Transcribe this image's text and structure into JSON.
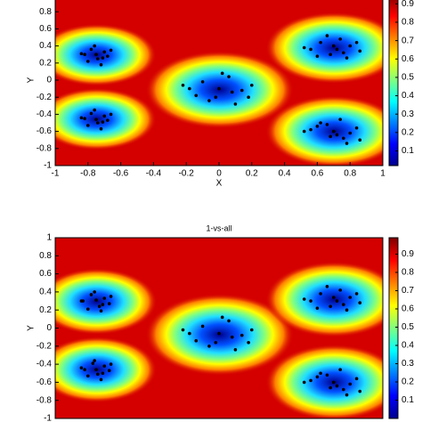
{
  "chart_data": [
    {
      "type": "scatter",
      "x_label": "X",
      "y_label": "Y",
      "xlim": [
        -1,
        1
      ],
      "ylim": [
        -1,
        1
      ],
      "xticks": [
        -1,
        -0.8,
        -0.6,
        -0.4,
        -0.2,
        0,
        0.2,
        0.4,
        0.6,
        0.8,
        1
      ],
      "yticks": [
        -1,
        -0.8,
        -0.6,
        -0.4,
        -0.2,
        0,
        0.2,
        0.4,
        0.6,
        0.8
      ],
      "colorbar": {
        "clim": [
          0.02,
          0.95
        ],
        "ticks": [
          0.1,
          0.2,
          0.3,
          0.4,
          0.5,
          0.6,
          0.7,
          0.8,
          0.9
        ]
      },
      "series": [
        {
          "color": "#000000",
          "x": [
            -0.82,
            -0.78,
            -0.74,
            -0.7,
            -0.68,
            -0.76,
            -0.8,
            -0.72,
            -0.66,
            -0.84,
            -0.75,
            -0.71
          ],
          "y": [
            0.3,
            0.36,
            0.25,
            0.33,
            0.28,
            0.4,
            0.22,
            0.18,
            0.35,
            0.31,
            0.3,
            0.26
          ]
        },
        {
          "color": "#000000",
          "x": [
            -0.82,
            -0.78,
            -0.74,
            -0.7,
            -0.68,
            -0.76,
            -0.8,
            -0.72,
            -0.66,
            -0.84,
            -0.75,
            -0.71
          ],
          "y": [
            -0.45,
            -0.39,
            -0.5,
            -0.42,
            -0.47,
            -0.35,
            -0.53,
            -0.57,
            -0.4,
            -0.44,
            -0.46,
            -0.49
          ]
        },
        {
          "color": "#000000",
          "x": [
            -0.18,
            -0.1,
            -0.02,
            0.06,
            0.14,
            0.2,
            -0.06,
            0.02,
            0.1,
            -0.14,
            0.0,
            0.08,
            -0.22,
            0.18
          ],
          "y": [
            -0.1,
            -0.02,
            -0.2,
            0.04,
            -0.12,
            -0.06,
            -0.24,
            0.08,
            -0.28,
            -0.18,
            -0.1,
            -0.14,
            -0.06,
            -0.2
          ]
        },
        {
          "color": "#000000",
          "x": [
            0.56,
            0.62,
            0.68,
            0.74,
            0.8,
            0.86,
            0.6,
            0.7,
            0.78,
            0.66,
            0.72,
            0.84,
            0.52,
            0.76
          ],
          "y": [
            0.36,
            0.44,
            0.3,
            0.48,
            0.4,
            0.34,
            0.28,
            0.4,
            0.26,
            0.52,
            0.36,
            0.44,
            0.38,
            0.32
          ]
        },
        {
          "color": "#000000",
          "x": [
            0.56,
            0.62,
            0.68,
            0.74,
            0.8,
            0.86,
            0.6,
            0.7,
            0.78,
            0.66,
            0.72,
            0.84,
            0.52,
            0.76
          ],
          "y": [
            -0.58,
            -0.5,
            -0.66,
            -0.46,
            -0.62,
            -0.7,
            -0.54,
            -0.6,
            -0.74,
            -0.52,
            -0.64,
            -0.56,
            -0.6,
            -0.68
          ]
        }
      ]
    },
    {
      "type": "scatter",
      "title": "1-vs-all",
      "y_label": "Y",
      "xlim": [
        -1,
        1
      ],
      "ylim": [
        -1,
        1
      ],
      "yticks": [
        -1,
        -0.8,
        -0.6,
        -0.4,
        -0.2,
        0,
        0.2,
        0.4,
        0.6,
        0.8,
        1
      ],
      "colorbar": {
        "clim": [
          0,
          0.99
        ],
        "ticks": [
          0.1,
          0.2,
          0.3,
          0.4,
          0.5,
          0.6,
          0.7,
          0.8,
          0.9
        ]
      },
      "series": [
        {
          "color": "#000000",
          "x": [
            -0.83,
            -0.78,
            -0.73,
            -0.7,
            -0.67,
            -0.76,
            -0.8,
            -0.72,
            -0.66,
            -0.84,
            -0.75,
            -0.71
          ],
          "y": [
            0.3,
            0.37,
            0.24,
            0.33,
            0.27,
            0.4,
            0.21,
            0.19,
            0.35,
            0.3,
            0.31,
            0.26
          ]
        },
        {
          "color": "#000000",
          "x": [
            -0.82,
            -0.77,
            -0.74,
            -0.7,
            -0.67,
            -0.76,
            -0.8,
            -0.72,
            -0.66,
            -0.84,
            -0.75,
            -0.71
          ],
          "y": [
            -0.46,
            -0.39,
            -0.51,
            -0.42,
            -0.47,
            -0.36,
            -0.53,
            -0.57,
            -0.4,
            -0.44,
            -0.46,
            -0.5
          ]
        },
        {
          "color": "#000000",
          "x": [
            -0.18,
            -0.1,
            -0.02,
            0.06,
            0.14,
            0.2,
            -0.06,
            0.02,
            0.1,
            -0.14,
            0.0,
            0.08,
            -0.22,
            0.18
          ],
          "y": [
            -0.06,
            0.02,
            -0.16,
            0.08,
            -0.08,
            -0.02,
            -0.2,
            0.12,
            -0.24,
            -0.14,
            -0.06,
            -0.1,
            -0.02,
            -0.16
          ]
        },
        {
          "color": "#000000",
          "x": [
            0.56,
            0.62,
            0.68,
            0.74,
            0.8,
            0.86,
            0.6,
            0.7,
            0.78,
            0.66,
            0.72,
            0.84,
            0.52,
            0.76
          ],
          "y": [
            0.3,
            0.38,
            0.24,
            0.42,
            0.34,
            0.28,
            0.22,
            0.34,
            0.2,
            0.46,
            0.3,
            0.38,
            0.32,
            0.26
          ]
        },
        {
          "color": "#000000",
          "x": [
            0.56,
            0.62,
            0.68,
            0.74,
            0.8,
            0.86,
            0.6,
            0.7,
            0.78,
            0.66,
            0.72,
            0.84,
            0.52,
            0.76
          ],
          "y": [
            -0.58,
            -0.5,
            -0.66,
            -0.46,
            -0.62,
            -0.7,
            -0.54,
            -0.6,
            -0.74,
            -0.52,
            -0.64,
            -0.56,
            -0.6,
            -0.68
          ]
        }
      ]
    }
  ]
}
